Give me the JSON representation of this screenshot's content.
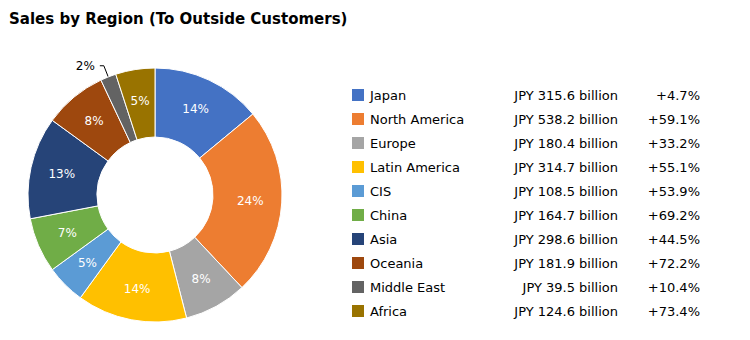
{
  "chart_data": {
    "type": "pie",
    "title": "Sales by Region (To Outside Customers)",
    "categories": [
      "Japan",
      "North America",
      "Europe",
      "Latin America",
      "CIS",
      "China",
      "Asia",
      "Oceania",
      "Middle East",
      "Africa"
    ],
    "values": [
      14,
      24,
      8,
      14,
      5,
      7,
      13,
      8,
      2,
      5
    ],
    "value_labels": [
      "14%",
      "24%",
      "8%",
      "14%",
      "5%",
      "7%",
      "13%",
      "8%",
      "2%",
      "5%"
    ],
    "colors": [
      "#4472c4",
      "#ed7d31",
      "#a5a5a5",
      "#ffc000",
      "#5b9bd5",
      "#70ad47",
      "#264478",
      "#9e480e",
      "#636363",
      "#997300"
    ],
    "sales_labels": [
      "JPY 315.6 billion",
      "JPY 538.2 billion",
      "JPY 180.4 billion",
      "JPY 314.7 billion",
      "JPY 108.5 billion",
      "JPY 164.7 billion",
      "JPY 298.6 billion",
      "JPY 181.9 billion",
      "JPY 39.5 billion",
      "JPY 124.6 billion"
    ],
    "growth_labels": [
      "+4.7%",
      "+59.1%",
      "+33.2%",
      "+55.1%",
      "+53.9%",
      "+69.2%",
      "+44.5%",
      "+72.2%",
      "+10.4%",
      "+73.4%"
    ],
    "data_labels": true,
    "legend": "right"
  }
}
